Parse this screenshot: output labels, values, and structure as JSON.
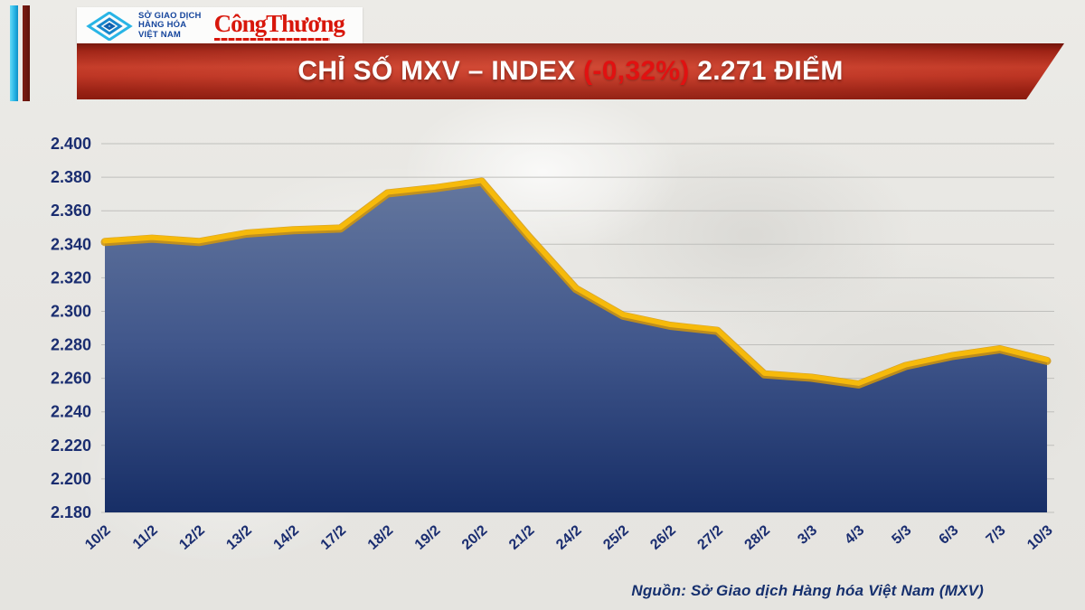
{
  "logo": {
    "org_lines": [
      "SỞ GIAO DỊCH",
      "HÀNG HÓA",
      "VIỆT NAM"
    ],
    "org_color": "#15459c",
    "newspaper_name": "CôngThương",
    "newspaper_color": "#d8170b"
  },
  "banner": {
    "title_prefix": "CHỈ SỐ MXV – INDEX ",
    "change": "(-0,32%)",
    "title_suffix": " 2.271 ĐIỂM",
    "background_red": "#bb3322",
    "change_color": "#e11111",
    "text_color": "#ffffff"
  },
  "chart_data": {
    "type": "area",
    "title": "CHỈ SỐ MXV – INDEX (-0,32%) 2.271 ĐIỂM",
    "xlabel": "",
    "ylabel": "",
    "x": [
      "10/2",
      "11/2",
      "12/2",
      "13/2",
      "14/2",
      "17/2",
      "18/2",
      "19/2",
      "20/2",
      "21/2",
      "24/2",
      "25/2",
      "26/2",
      "27/2",
      "28/2",
      "3/3",
      "4/3",
      "5/3",
      "6/3",
      "7/3",
      "10/3"
    ],
    "values": [
      2.342,
      2.344,
      2.342,
      2.347,
      2.349,
      2.35,
      2.371,
      2.374,
      2.378,
      2.345,
      2.314,
      2.298,
      2.292,
      2.289,
      2.263,
      2.261,
      2.257,
      2.268,
      2.274,
      2.278,
      2.271
    ],
    "y_ticks": [
      "2.400",
      "2.380",
      "2.360",
      "2.340",
      "2.320",
      "2.300",
      "2.280",
      "2.260",
      "2.240",
      "2.220",
      "2.200",
      "2.180"
    ],
    "ylim": [
      2.18,
      2.4
    ],
    "grid": true,
    "legend": "none",
    "line_color": "#f6ba0b",
    "line_edge_color": "#d2960a",
    "fill_top": "#64779e",
    "fill_mid": "#40568b",
    "fill_bottom": "#172e66",
    "grid_color": "#bfbfbc",
    "tick_label_color": "#1a2d70",
    "last_value_label": "2.271"
  },
  "source": {
    "text": "Nguồn: Sở Giao dịch Hàng hóa Việt Nam (MXV)"
  }
}
